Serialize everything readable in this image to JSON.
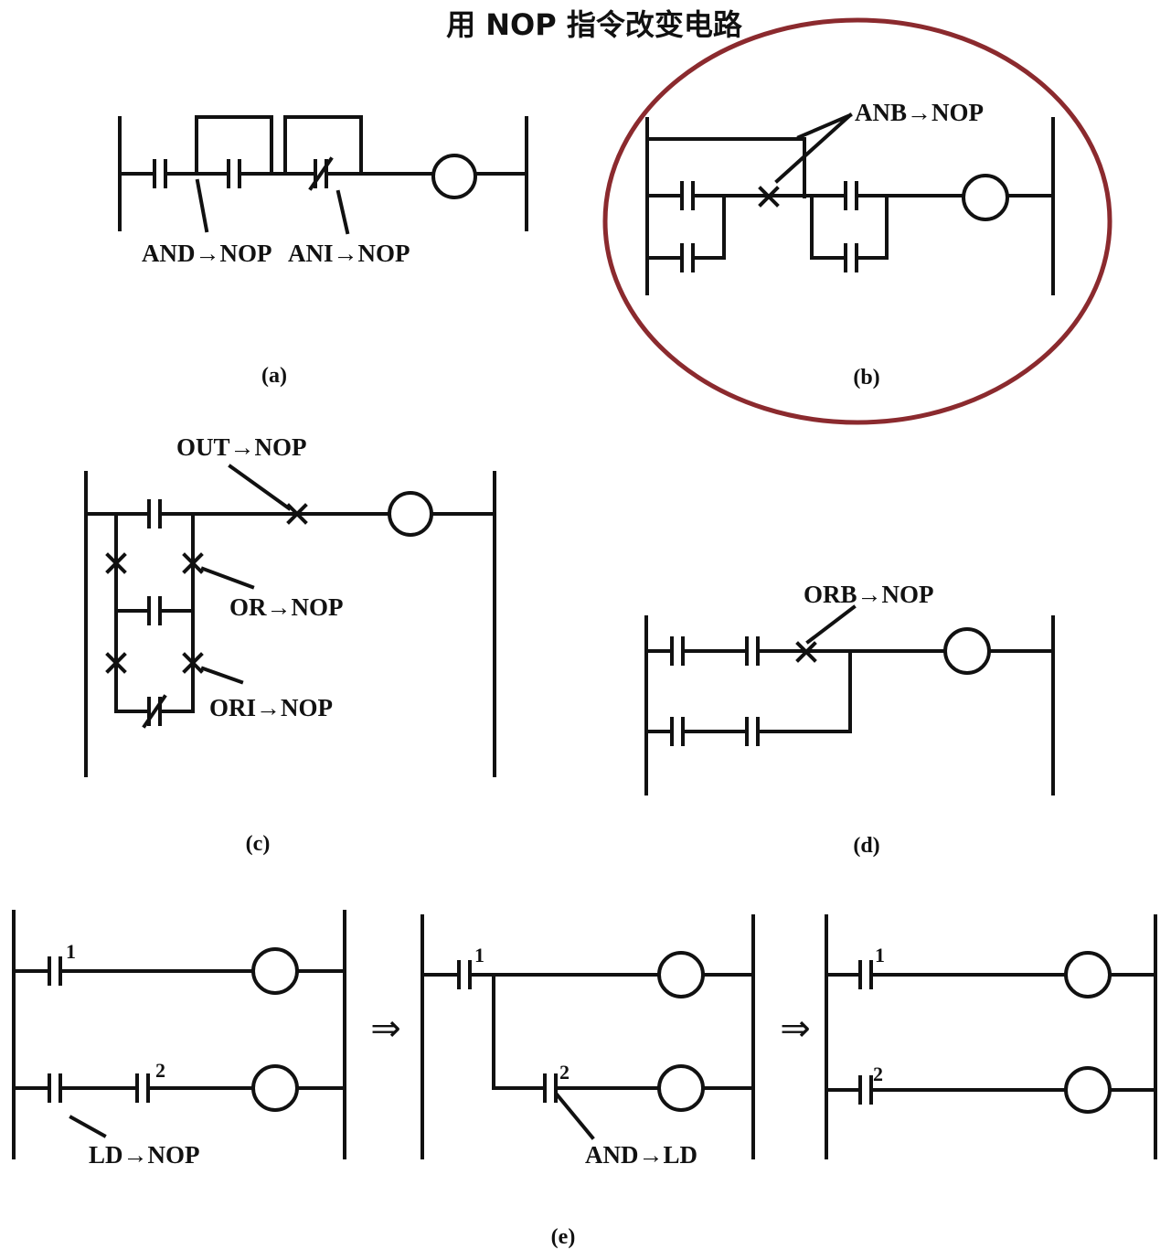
{
  "title": "用 NOP 指令改变电路",
  "panels": {
    "a": {
      "caption": "(a)",
      "label_and": "AND→NOP",
      "label_ani": "ANI→NOP"
    },
    "b": {
      "caption": "(b)",
      "label_anb": "ANB→NOP",
      "highlight_color": "#8b2a2e"
    },
    "c": {
      "caption": "(c)",
      "label_out": "OUT→NOP",
      "label_or": "OR→NOP",
      "label_ori": "ORI→NOP"
    },
    "d": {
      "caption": "(d)",
      "label_orb": "ORB→NOP"
    },
    "e": {
      "caption": "(e)",
      "label_ld": "LD→NOP",
      "label_and_ld": "AND→LD",
      "contact_1": "1",
      "contact_2": "2",
      "arrow": "⇒"
    }
  }
}
